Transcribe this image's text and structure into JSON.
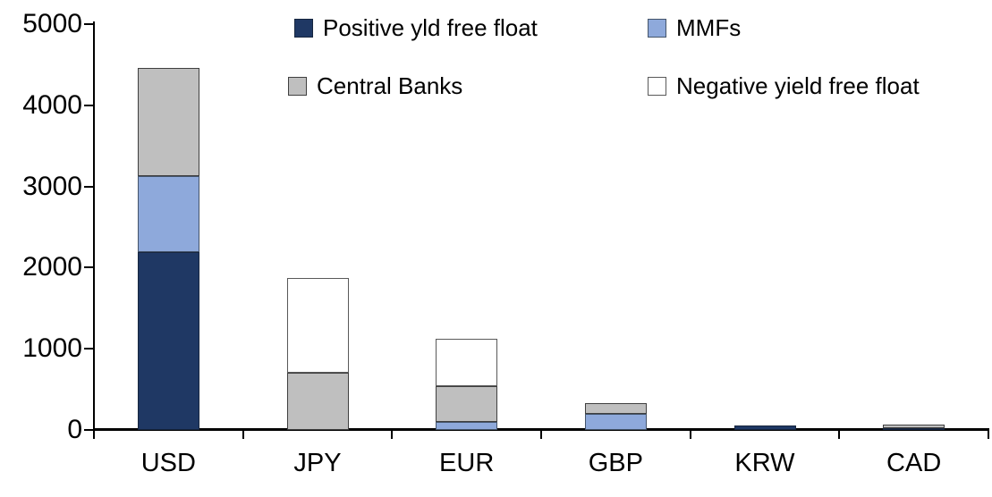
{
  "chart_data": {
    "type": "bar",
    "stacked": true,
    "title": "",
    "xlabel": "",
    "ylabel": "",
    "categories": [
      "USD",
      "JPY",
      "EUR",
      "GBP",
      "KRW",
      "CAD"
    ],
    "series": [
      {
        "name": "Positive yld free float",
        "color": "#1F3864",
        "border": "#17263F",
        "values": [
          2190,
          0,
          0,
          0,
          50,
          25
        ]
      },
      {
        "name": "MMFs",
        "color": "#8EA9DB",
        "border": "#44546A",
        "values": [
          940,
          0,
          100,
          200,
          0,
          0
        ]
      },
      {
        "name": "Central Banks",
        "color": "#BFBFBF",
        "border": "#3F3F3F",
        "values": [
          1330,
          700,
          440,
          130,
          0,
          40
        ]
      },
      {
        "name": "Negative yield free float",
        "color": "#FFFFFF",
        "border": "#595959",
        "values": [
          0,
          1170,
          580,
          0,
          0,
          0
        ]
      }
    ],
    "ylim": [
      0,
      5000
    ],
    "yticks": [
      "0",
      "1000",
      "2000",
      "3000",
      "4000",
      "5000"
    ],
    "grid": false,
    "legend_position": "top",
    "legend_rows": [
      [
        "Positive yld free float",
        "MMFs"
      ],
      [
        "Central Banks",
        "Negative yield free float"
      ]
    ],
    "axis_color": "#000000",
    "text_color": "#000000"
  }
}
